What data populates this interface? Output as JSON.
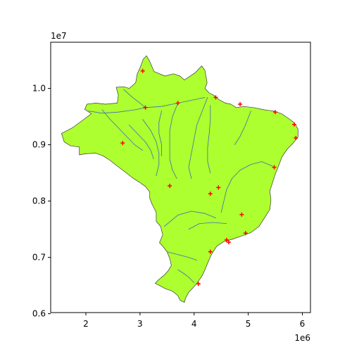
{
  "chart_data": {
    "type": "scatter",
    "title": "",
    "xlabel": "",
    "ylabel": "",
    "x_offset_label": "1e6",
    "y_offset_label": "1e7",
    "xlim": [
      1.35,
      6.15
    ],
    "ylim": [
      6.02,
      10.82
    ],
    "x_ticks": [
      2,
      3,
      4,
      5,
      6
    ],
    "x_tick_labels": [
      "2",
      "3",
      "4",
      "5",
      "6"
    ],
    "y_ticks": [
      6.0,
      7.0,
      8.0,
      9.0,
      10.0
    ],
    "y_tick_labels": [
      "0.6",
      "0.7",
      "0.8",
      "0.9",
      "1.0"
    ],
    "colors": {
      "land_fill": "#adff2f",
      "land_edge": "#3a3a3a",
      "river": "#3b6fb0",
      "marker": "#ff0000"
    },
    "marker": "+",
    "grid": false,
    "legend": "none",
    "outline": [
      [
        1.55,
        9.2
      ],
      [
        1.75,
        9.3
      ],
      [
        1.92,
        9.42
      ],
      [
        2.03,
        9.5
      ],
      [
        2.1,
        9.55
      ],
      [
        1.98,
        9.63
      ],
      [
        2.02,
        9.72
      ],
      [
        2.18,
        9.74
      ],
      [
        2.36,
        9.72
      ],
      [
        2.58,
        9.74
      ],
      [
        2.6,
        9.88
      ],
      [
        2.56,
        10.02
      ],
      [
        2.7,
        10.03
      ],
      [
        2.8,
        10.0
      ],
      [
        2.92,
        10.1
      ],
      [
        2.95,
        10.26
      ],
      [
        3.0,
        10.36
      ],
      [
        3.06,
        10.52
      ],
      [
        3.12,
        10.58
      ],
      [
        3.18,
        10.48
      ],
      [
        3.26,
        10.3
      ],
      [
        3.46,
        10.22
      ],
      [
        3.62,
        10.26
      ],
      [
        3.74,
        10.22
      ],
      [
        3.82,
        10.15
      ],
      [
        3.9,
        10.2
      ],
      [
        4.02,
        10.28
      ],
      [
        4.14,
        10.4
      ],
      [
        4.2,
        10.32
      ],
      [
        4.24,
        10.1
      ],
      [
        4.2,
        10.0
      ],
      [
        4.28,
        9.92
      ],
      [
        4.36,
        9.88
      ],
      [
        4.46,
        9.8
      ],
      [
        4.58,
        9.74
      ],
      [
        4.68,
        9.72
      ],
      [
        4.78,
        9.66
      ],
      [
        4.92,
        9.68
      ],
      [
        5.1,
        9.66
      ],
      [
        5.3,
        9.62
      ],
      [
        5.46,
        9.6
      ],
      [
        5.62,
        9.55
      ],
      [
        5.74,
        9.47
      ],
      [
        5.84,
        9.4
      ],
      [
        5.92,
        9.28
      ],
      [
        5.92,
        9.14
      ],
      [
        5.84,
        9.04
      ],
      [
        5.72,
        8.92
      ],
      [
        5.62,
        8.78
      ],
      [
        5.56,
        8.62
      ],
      [
        5.5,
        8.48
      ],
      [
        5.46,
        8.36
      ],
      [
        5.4,
        8.18
      ],
      [
        5.42,
        8.02
      ],
      [
        5.4,
        7.85
      ],
      [
        5.3,
        7.7
      ],
      [
        5.2,
        7.55
      ],
      [
        5.05,
        7.44
      ],
      [
        4.88,
        7.38
      ],
      [
        4.7,
        7.32
      ],
      [
        4.55,
        7.28
      ],
      [
        4.42,
        7.2
      ],
      [
        4.32,
        7.05
      ],
      [
        4.26,
        6.92
      ],
      [
        4.2,
        6.78
      ],
      [
        4.14,
        6.66
      ],
      [
        4.06,
        6.55
      ],
      [
        3.98,
        6.46
      ],
      [
        3.9,
        6.38
      ],
      [
        3.84,
        6.27
      ],
      [
        3.82,
        6.2
      ],
      [
        3.74,
        6.24
      ],
      [
        3.7,
        6.32
      ],
      [
        3.6,
        6.4
      ],
      [
        3.48,
        6.44
      ],
      [
        3.36,
        6.5
      ],
      [
        3.28,
        6.54
      ],
      [
        3.34,
        6.6
      ],
      [
        3.44,
        6.68
      ],
      [
        3.52,
        6.76
      ],
      [
        3.58,
        6.86
      ],
      [
        3.55,
        6.98
      ],
      [
        3.5,
        7.1
      ],
      [
        3.42,
        7.2
      ],
      [
        3.36,
        7.26
      ],
      [
        3.42,
        7.4
      ],
      [
        3.38,
        7.55
      ],
      [
        3.3,
        7.64
      ],
      [
        3.3,
        7.8
      ],
      [
        3.22,
        7.95
      ],
      [
        3.18,
        8.05
      ],
      [
        3.18,
        8.16
      ],
      [
        3.1,
        8.26
      ],
      [
        2.98,
        8.34
      ],
      [
        2.88,
        8.4
      ],
      [
        2.72,
        8.52
      ],
      [
        2.58,
        8.62
      ],
      [
        2.45,
        8.72
      ],
      [
        2.32,
        8.8
      ],
      [
        2.18,
        8.85
      ],
      [
        2.0,
        8.84
      ],
      [
        1.88,
        8.82
      ],
      [
        1.88,
        8.96
      ],
      [
        1.72,
        8.98
      ],
      [
        1.6,
        9.05
      ],
      [
        1.55,
        9.2
      ]
    ],
    "rivers": [
      [
        [
          2.05,
          9.6
        ],
        [
          2.3,
          9.56
        ],
        [
          2.6,
          9.58
        ],
        [
          2.9,
          9.62
        ],
        [
          3.1,
          9.66
        ],
        [
          3.4,
          9.68
        ],
        [
          3.7,
          9.74
        ],
        [
          4.0,
          9.8
        ],
        [
          4.2,
          9.84
        ]
      ],
      [
        [
          2.7,
          9.98
        ],
        [
          2.85,
          9.85
        ],
        [
          3.0,
          9.74
        ],
        [
          3.1,
          9.66
        ]
      ],
      [
        [
          2.3,
          9.62
        ],
        [
          2.45,
          9.45
        ],
        [
          2.6,
          9.3
        ],
        [
          2.75,
          9.15
        ],
        [
          2.9,
          9.0
        ],
        [
          3.05,
          8.9
        ]
      ],
      [
        [
          2.8,
          9.35
        ],
        [
          2.95,
          9.2
        ],
        [
          3.1,
          9.05
        ],
        [
          3.2,
          8.9
        ],
        [
          3.25,
          8.75
        ]
      ],
      [
        [
          3.05,
          9.45
        ],
        [
          3.2,
          9.25
        ],
        [
          3.3,
          9.05
        ],
        [
          3.35,
          8.85
        ],
        [
          3.35,
          8.65
        ],
        [
          3.3,
          8.45
        ]
      ],
      [
        [
          3.4,
          9.6
        ],
        [
          3.35,
          9.4
        ],
        [
          3.35,
          9.2
        ],
        [
          3.4,
          9.0
        ],
        [
          3.4,
          8.8
        ]
      ],
      [
        [
          3.7,
          9.74
        ],
        [
          3.6,
          9.5
        ],
        [
          3.55,
          9.25
        ],
        [
          3.55,
          9.0
        ],
        [
          3.55,
          8.75
        ],
        [
          3.6,
          8.55
        ],
        [
          3.68,
          8.4
        ]
      ],
      [
        [
          4.25,
          9.84
        ],
        [
          4.15,
          9.6
        ],
        [
          4.05,
          9.35
        ],
        [
          4.0,
          9.1
        ],
        [
          3.95,
          8.85
        ],
        [
          3.9,
          8.6
        ],
        [
          3.95,
          8.4
        ]
      ],
      [
        [
          4.3,
          9.7
        ],
        [
          4.3,
          9.45
        ],
        [
          4.28,
          9.2
        ],
        [
          4.25,
          8.95
        ],
        [
          4.25,
          8.7
        ],
        [
          4.3,
          8.5
        ]
      ],
      [
        [
          5.05,
          9.6
        ],
        [
          4.95,
          9.35
        ],
        [
          4.85,
          9.15
        ],
        [
          4.75,
          9.0
        ]
      ],
      [
        [
          5.45,
          8.62
        ],
        [
          5.25,
          8.7
        ],
        [
          5.05,
          8.65
        ],
        [
          4.85,
          8.55
        ],
        [
          4.7,
          8.4
        ],
        [
          4.6,
          8.2
        ],
        [
          4.55,
          8.0
        ],
        [
          4.5,
          7.8
        ]
      ],
      [
        [
          3.45,
          7.55
        ],
        [
          3.7,
          7.75
        ],
        [
          3.95,
          7.82
        ],
        [
          4.2,
          7.78
        ],
        [
          4.4,
          7.7
        ]
      ],
      [
        [
          3.9,
          7.5
        ],
        [
          4.1,
          7.6
        ],
        [
          4.35,
          7.62
        ],
        [
          4.6,
          7.6
        ]
      ],
      [
        [
          3.5,
          7.1
        ],
        [
          3.7,
          7.05
        ],
        [
          3.9,
          7.0
        ],
        [
          4.05,
          6.95
        ]
      ],
      [
        [
          4.0,
          6.55
        ],
        [
          3.9,
          6.65
        ],
        [
          3.8,
          6.72
        ],
        [
          3.7,
          6.78
        ]
      ]
    ],
    "points": [
      [
        3.05,
        10.31
      ],
      [
        3.1,
        9.66
      ],
      [
        3.7,
        9.74
      ],
      [
        4.4,
        9.84
      ],
      [
        4.85,
        9.72
      ],
      [
        5.5,
        9.58
      ],
      [
        5.85,
        9.36
      ],
      [
        5.88,
        9.12
      ],
      [
        2.68,
        9.03
      ],
      [
        5.48,
        8.6
      ],
      [
        3.55,
        8.27
      ],
      [
        4.3,
        8.13
      ],
      [
        4.45,
        8.24
      ],
      [
        4.88,
        7.76
      ],
      [
        4.95,
        7.43
      ],
      [
        4.6,
        7.31
      ],
      [
        4.64,
        7.27
      ],
      [
        4.3,
        7.1
      ],
      [
        4.08,
        6.53
      ]
    ]
  }
}
